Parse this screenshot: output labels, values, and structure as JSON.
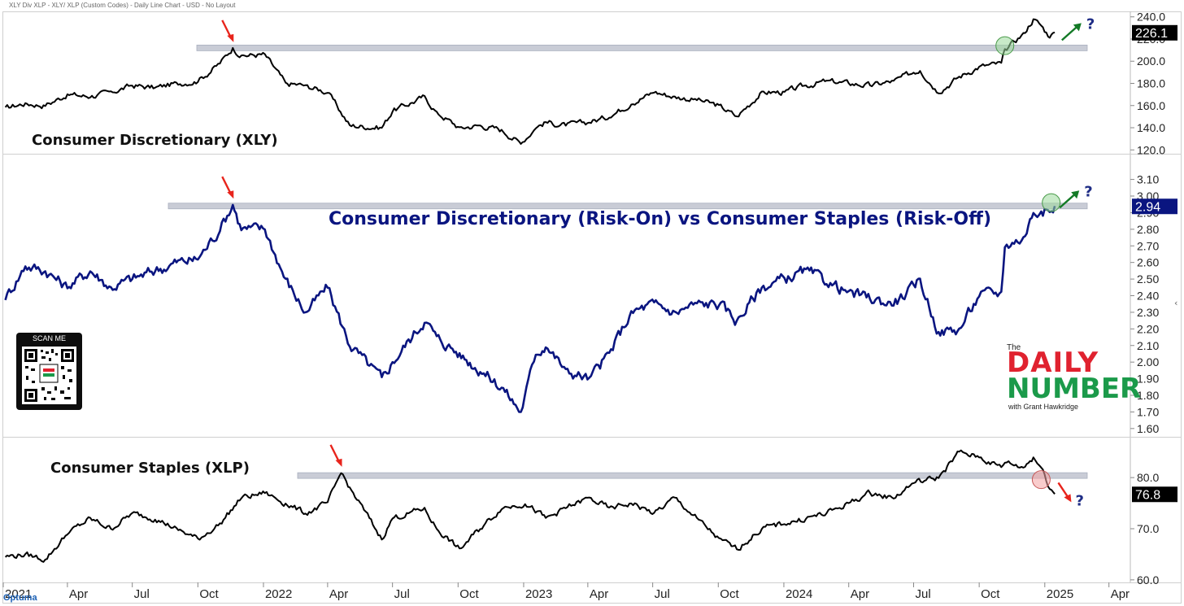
{
  "header": {
    "title": "XLY Div XLP - XLY/ XLP (Custom Codes) - Daily Line Chart - USD - No Layout"
  },
  "brand": {
    "name": "Optuma"
  },
  "colors": {
    "price_line": "#000000",
    "ratio_line": "#0a1580",
    "resistance": "#c9ccd6",
    "arrow_red": "#e8241c",
    "arrow_green": "#137a26",
    "circle_green": "#9bd99b",
    "circle_red": "#f4a3a3",
    "question": "#1f2d86"
  },
  "qr_code": {
    "label": "SCAN ME"
  },
  "logo": {
    "the": "The",
    "line1": "DAILY",
    "line2": "NUMBER",
    "byline": "with Grant Hawkridge"
  },
  "chart_data": [
    {
      "id": "xly",
      "type": "line",
      "title": "Consumer Discretionary (XLY)",
      "last_value": "226.1",
      "ylim": [
        118,
        242
      ],
      "yticks": [
        "240.0",
        "220.0",
        "200.0",
        "180.0",
        "160.0",
        "140.0",
        "120.0"
      ],
      "ytick_values": [
        240,
        220,
        200,
        180,
        160,
        140,
        120
      ],
      "resistance": 212,
      "question": "?",
      "x": [
        "2021-01-04",
        "2021-02-01",
        "2021-03-01",
        "2021-04-01",
        "2021-05-03",
        "2021-06-01",
        "2021-07-01",
        "2021-08-02",
        "2021-09-01",
        "2021-10-01",
        "2021-11-01",
        "2021-11-19",
        "2021-12-01",
        "2022-01-03",
        "2022-02-01",
        "2022-03-01",
        "2022-04-01",
        "2022-05-02",
        "2022-06-16",
        "2022-07-01",
        "2022-08-15",
        "2022-09-01",
        "2022-10-03",
        "2022-11-01",
        "2022-12-01",
        "2022-12-28",
        "2023-01-18",
        "2023-02-01",
        "2023-03-01",
        "2023-04-03",
        "2023-05-01",
        "2023-06-01",
        "2023-07-03",
        "2023-08-01",
        "2023-09-01",
        "2023-10-02",
        "2023-10-27",
        "2023-12-01",
        "2024-01-02",
        "2024-02-01",
        "2024-03-01",
        "2024-04-01",
        "2024-05-01",
        "2024-06-03",
        "2024-07-01",
        "2024-07-10",
        "2024-08-05",
        "2024-09-03",
        "2024-10-01",
        "2024-11-01",
        "2024-11-06",
        "2024-12-02",
        "2024-12-16",
        "2024-12-27",
        "2025-01-08",
        "2025-01-15"
      ],
      "values": [
        158,
        162,
        160,
        170,
        168,
        172,
        178,
        176,
        180,
        182,
        198,
        212,
        205,
        206,
        180,
        178,
        172,
        142,
        140,
        155,
        168,
        154,
        140,
        142,
        138,
        126,
        140,
        145,
        142,
        145,
        150,
        162,
        172,
        168,
        165,
        160,
        150,
        172,
        172,
        178,
        182,
        180,
        178,
        182,
        190,
        192,
        172,
        186,
        195,
        198,
        210,
        225,
        238,
        232,
        222,
        226
      ]
    },
    {
      "id": "ratio",
      "type": "line",
      "title": "Consumer Discretionary (Risk-On) vs Consumer Staples (Risk-Off)",
      "last_value": "2.94",
      "ylim": [
        1.56,
        3.24
      ],
      "yticks": [
        "3.10",
        "3.00",
        "2.90",
        "2.80",
        "2.70",
        "2.60",
        "2.50",
        "2.40",
        "2.30",
        "2.20",
        "2.10",
        "2.00",
        "1.90",
        "1.80",
        "1.70",
        "1.60"
      ],
      "ytick_values": [
        3.1,
        3.0,
        2.9,
        2.8,
        2.7,
        2.6,
        2.5,
        2.4,
        2.3,
        2.2,
        2.1,
        2.0,
        1.9,
        1.8,
        1.7,
        1.6
      ],
      "resistance": 2.94,
      "question": "?",
      "x": [
        "2021-01-04",
        "2021-02-01",
        "2021-03-01",
        "2021-04-01",
        "2021-05-03",
        "2021-06-01",
        "2021-07-01",
        "2021-08-02",
        "2021-09-01",
        "2021-10-01",
        "2021-11-01",
        "2021-11-19",
        "2021-12-01",
        "2022-01-03",
        "2022-02-01",
        "2022-03-01",
        "2022-04-01",
        "2022-05-02",
        "2022-06-16",
        "2022-07-01",
        "2022-08-15",
        "2022-09-01",
        "2022-10-03",
        "2022-11-01",
        "2022-12-01",
        "2022-12-28",
        "2023-01-18",
        "2023-02-01",
        "2023-03-01",
        "2023-04-03",
        "2023-05-01",
        "2023-06-01",
        "2023-07-03",
        "2023-08-01",
        "2023-09-01",
        "2023-10-02",
        "2023-10-27",
        "2023-12-01",
        "2024-01-02",
        "2024-02-01",
        "2024-03-01",
        "2024-04-01",
        "2024-05-01",
        "2024-06-03",
        "2024-07-01",
        "2024-07-10",
        "2024-08-05",
        "2024-09-03",
        "2024-10-01",
        "2024-11-01",
        "2024-11-06",
        "2024-12-02",
        "2024-12-16",
        "2024-12-27",
        "2025-01-08",
        "2025-01-15"
      ],
      "values": [
        2.38,
        2.58,
        2.55,
        2.45,
        2.55,
        2.45,
        2.5,
        2.55,
        2.6,
        2.62,
        2.8,
        2.95,
        2.8,
        2.8,
        2.5,
        2.3,
        2.45,
        2.1,
        1.9,
        2.0,
        2.25,
        2.15,
        2.05,
        1.95,
        1.85,
        1.7,
        2.05,
        2.1,
        1.95,
        1.9,
        2.05,
        2.3,
        2.35,
        2.3,
        2.35,
        2.35,
        2.25,
        2.45,
        2.5,
        2.55,
        2.48,
        2.42,
        2.38,
        2.35,
        2.45,
        2.5,
        2.18,
        2.2,
        2.4,
        2.42,
        2.7,
        2.75,
        2.9,
        2.92,
        2.9,
        2.94
      ]
    },
    {
      "id": "xlp",
      "type": "line",
      "title": "Consumer Staples (XLP)",
      "last_value": "76.8",
      "ylim": [
        59.5,
        87.5
      ],
      "yticks": [
        "80.0",
        "70.0",
        "60.0"
      ],
      "ytick_values": [
        80,
        70,
        60
      ],
      "resistance": 80.4,
      "question": "?",
      "x": [
        "2021-01-04",
        "2021-02-01",
        "2021-03-01",
        "2021-04-01",
        "2021-05-03",
        "2021-06-01",
        "2021-07-01",
        "2021-08-02",
        "2021-09-01",
        "2021-10-01",
        "2021-11-01",
        "2021-12-01",
        "2022-01-03",
        "2022-02-01",
        "2022-03-01",
        "2022-04-01",
        "2022-04-20",
        "2022-05-02",
        "2022-06-16",
        "2022-07-01",
        "2022-08-15",
        "2022-09-01",
        "2022-10-03",
        "2022-11-01",
        "2022-12-01",
        "2023-01-03",
        "2023-02-01",
        "2023-03-01",
        "2023-04-03",
        "2023-05-01",
        "2023-06-01",
        "2023-07-03",
        "2023-08-01",
        "2023-09-01",
        "2023-10-02",
        "2023-10-27",
        "2023-12-01",
        "2024-01-02",
        "2024-02-01",
        "2024-03-01",
        "2024-04-01",
        "2024-05-01",
        "2024-06-03",
        "2024-07-01",
        "2024-08-05",
        "2024-09-03",
        "2024-10-01",
        "2024-11-01",
        "2024-11-06",
        "2024-12-02",
        "2024-12-16",
        "2024-12-27",
        "2025-01-08",
        "2025-01-15"
      ],
      "values": [
        64.5,
        65,
        64,
        69,
        72,
        70,
        73,
        72,
        70,
        68,
        71,
        76,
        77,
        75,
        73,
        75,
        81,
        78,
        68,
        72,
        74,
        70,
        66,
        70,
        74,
        75,
        72,
        74,
        76,
        74,
        75,
        73,
        76,
        72,
        68,
        66,
        70,
        71,
        72,
        73,
        75,
        77,
        76,
        79,
        80,
        85,
        84,
        82,
        83,
        82,
        84,
        82,
        78,
        76.8
      ]
    }
  ],
  "time_axis": {
    "labels": [
      "2021",
      "Apr",
      "Jul",
      "Oct",
      "2022",
      "Apr",
      "Jul",
      "Oct",
      "2023",
      "Apr",
      "Jul",
      "Oct",
      "2024",
      "Apr",
      "Jul",
      "Oct",
      "2025",
      "Apr"
    ],
    "dates": [
      "2021-01-01",
      "2021-04-01",
      "2021-07-01",
      "2021-10-01",
      "2022-01-01",
      "2022-04-01",
      "2022-07-01",
      "2022-10-01",
      "2023-01-01",
      "2023-04-01",
      "2023-07-01",
      "2023-10-01",
      "2024-01-01",
      "2024-04-01",
      "2024-07-01",
      "2024-10-01",
      "2025-01-01",
      "2025-04-01"
    ]
  }
}
